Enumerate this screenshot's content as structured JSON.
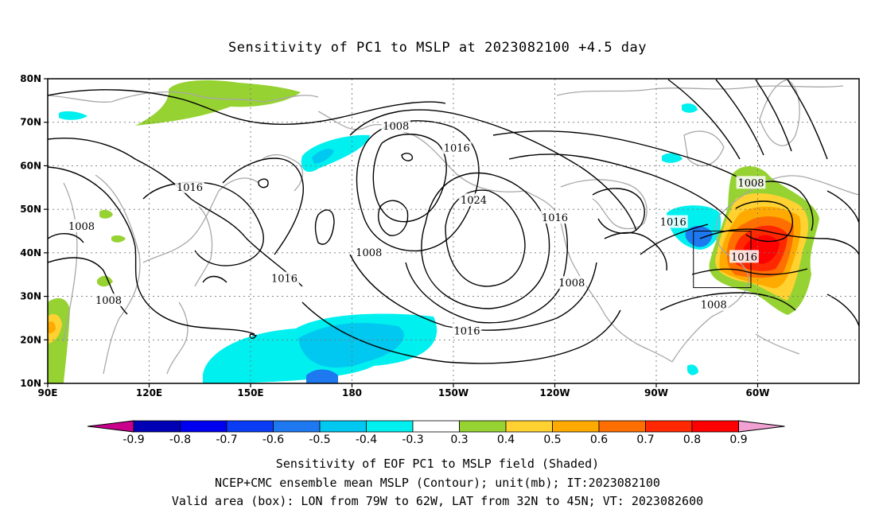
{
  "title": "Sensitivity of PC1 to MSLP at 2023082100 +4.5 day",
  "captions": [
    "Sensitivity of EOF PC1 to MSLP field (Shaded)",
    "NCEP+CMC ensemble mean MSLP (Contour); unit(mb); IT:2023082100",
    "Valid area (box): LON from 79W to 62W, LAT from 32N to 45N; VT: 2023082600"
  ],
  "map": {
    "lon_range": [
      90,
      330
    ],
    "lat_range": [
      10,
      80
    ],
    "x_ticks": [
      {
        "lon": 90,
        "label": "90E"
      },
      {
        "lon": 120,
        "label": "120E"
      },
      {
        "lon": 150,
        "label": "150E"
      },
      {
        "lon": 180,
        "label": "180"
      },
      {
        "lon": 210,
        "label": "150W"
      },
      {
        "lon": 240,
        "label": "120W"
      },
      {
        "lon": 270,
        "label": "90W"
      },
      {
        "lon": 300,
        "label": "60W"
      }
    ],
    "y_ticks": [
      {
        "lat": 10,
        "label": "10N"
      },
      {
        "lat": 20,
        "label": "20N"
      },
      {
        "lat": 30,
        "label": "30N"
      },
      {
        "lat": 40,
        "label": "40N"
      },
      {
        "lat": 50,
        "label": "50N"
      },
      {
        "lat": 60,
        "label": "60N"
      },
      {
        "lat": 70,
        "label": "70N"
      },
      {
        "lat": 80,
        "label": "80N"
      }
    ],
    "valid_box": {
      "lon": [
        281,
        298
      ],
      "lat": [
        32,
        45
      ]
    },
    "contour_labels": [
      {
        "text": "1008",
        "lon": 193,
        "lat": 69
      },
      {
        "text": "1016",
        "lon": 211,
        "lat": 64
      },
      {
        "text": "1016",
        "lon": 132,
        "lat": 55
      },
      {
        "text": "1024",
        "lon": 216,
        "lat": 52
      },
      {
        "text": "1016",
        "lon": 240,
        "lat": 48
      },
      {
        "text": "1016",
        "lon": 275,
        "lat": 47
      },
      {
        "text": "1008",
        "lon": 298,
        "lat": 56
      },
      {
        "text": "1008",
        "lon": 100,
        "lat": 46
      },
      {
        "text": "1008",
        "lon": 185,
        "lat": 40
      },
      {
        "text": "1016",
        "lon": 296,
        "lat": 39
      },
      {
        "text": "1016",
        "lon": 160,
        "lat": 34
      },
      {
        "text": "1008",
        "lon": 245,
        "lat": 33
      },
      {
        "text": "1008",
        "lon": 108,
        "lat": 29
      },
      {
        "text": "1008",
        "lon": 287,
        "lat": 28
      },
      {
        "text": "1016",
        "lon": 214,
        "lat": 22
      }
    ],
    "shading_colors": {
      "neg_0.9": "#0000b4",
      "neg_0.8": "#0000f0",
      "neg_0.7": "#0a3cf5",
      "neg_0.6": "#1e78f0",
      "neg_0.5": "#00c8f0",
      "neg_0.4": "#00f0f0",
      "pos_0.3": "#96d232",
      "pos_0.4": "#ffd232",
      "pos_0.5": "#ffaa00",
      "pos_0.6": "#ff6e00",
      "pos_0.7": "#ff2800",
      "pos_0.8": "#ff0000"
    }
  },
  "colorbar": {
    "labels": [
      "-0.9",
      "-0.8",
      "-0.7",
      "-0.6",
      "-0.5",
      "-0.4",
      "-0.3",
      "0.3",
      "0.4",
      "0.5",
      "0.6",
      "0.7",
      "0.8",
      "0.9"
    ],
    "colors": [
      "#0000b4",
      "#0000f0",
      "#0a3cf5",
      "#1e78f0",
      "#00c8f0",
      "#00f0f0",
      "#ffffff",
      "#96d232",
      "#ffd232",
      "#ffaa00",
      "#ff6e00",
      "#ff2800",
      "#ff0000"
    ],
    "low_end_color": "#c8008c",
    "high_end_color": "#f0a0d2"
  }
}
